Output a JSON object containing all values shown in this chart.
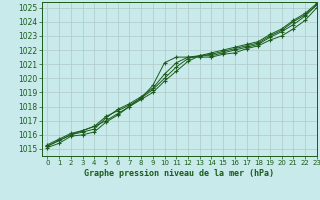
{
  "title": "Graphe pression niveau de la mer (hPa)",
  "bg_color": "#c8eaea",
  "grid_color": "#b0c8c8",
  "line_color": "#1a5c1a",
  "xlim": [
    -0.5,
    23
  ],
  "ylim": [
    1014.5,
    1025.4
  ],
  "xticks": [
    0,
    1,
    2,
    3,
    4,
    5,
    6,
    7,
    8,
    9,
    10,
    11,
    12,
    13,
    14,
    15,
    16,
    17,
    18,
    19,
    20,
    21,
    22,
    23
  ],
  "yticks": [
    1015,
    1016,
    1017,
    1018,
    1019,
    1020,
    1021,
    1022,
    1023,
    1024,
    1025
  ],
  "series": [
    [
      1015.1,
      1015.4,
      1015.9,
      1016.0,
      1016.2,
      1016.9,
      1017.4,
      1018.0,
      1018.6,
      1019.5,
      1021.1,
      1021.5,
      1021.5,
      1021.5,
      1021.5,
      1021.7,
      1021.8,
      1022.1,
      1022.3,
      1022.7,
      1023.0,
      1023.5,
      1024.1,
      1025.0
    ],
    [
      1015.2,
      1015.6,
      1016.0,
      1016.2,
      1016.4,
      1017.2,
      1017.8,
      1018.2,
      1018.7,
      1019.3,
      1020.3,
      1021.1,
      1021.5,
      1021.6,
      1021.6,
      1021.8,
      1022.0,
      1022.2,
      1022.4,
      1022.9,
      1023.3,
      1023.8,
      1024.4,
      1025.2
    ],
    [
      1015.3,
      1015.7,
      1016.1,
      1016.3,
      1016.6,
      1017.0,
      1017.5,
      1018.0,
      1018.5,
      1019.0,
      1019.8,
      1020.5,
      1021.2,
      1021.6,
      1021.8,
      1022.0,
      1022.2,
      1022.4,
      1022.6,
      1023.1,
      1023.5,
      1024.1,
      1024.6,
      1025.3
    ],
    [
      1015.2,
      1015.6,
      1016.0,
      1016.3,
      1016.6,
      1017.3,
      1017.7,
      1018.1,
      1018.6,
      1019.2,
      1020.0,
      1020.8,
      1021.4,
      1021.6,
      1021.7,
      1021.9,
      1022.1,
      1022.3,
      1022.5,
      1023.0,
      1023.4,
      1024.0,
      1024.5,
      1025.2
    ]
  ],
  "markers_series": 0,
  "ytick_fontsize": 5.5,
  "xtick_fontsize": 5.0,
  "xlabel_fontsize": 6.0,
  "linewidth": 0.7
}
